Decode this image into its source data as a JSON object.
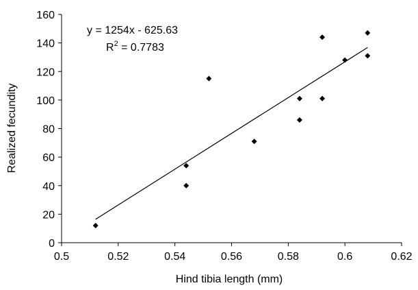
{
  "chart_data": {
    "type": "scatter",
    "xlabel": "Hind tibia length (mm)",
    "ylabel": "Realized fecundity",
    "xlim": [
      0.5,
      0.62
    ],
    "ylim": [
      0,
      160
    ],
    "x_ticks": [
      "0.5",
      "0.52",
      "0.54",
      "0.56",
      "0.58",
      "0.6",
      "0.62"
    ],
    "y_ticks": [
      "0",
      "20",
      "40",
      "60",
      "80",
      "100",
      "120",
      "140",
      "160"
    ],
    "grid": false,
    "legend": "none",
    "marker": "diamond",
    "colors": {
      "points": "#000000",
      "trendline": "#000000",
      "axes": "#000000"
    },
    "points": [
      {
        "x": 0.512,
        "y": 12
      },
      {
        "x": 0.544,
        "y": 54
      },
      {
        "x": 0.544,
        "y": 40
      },
      {
        "x": 0.552,
        "y": 115
      },
      {
        "x": 0.568,
        "y": 71
      },
      {
        "x": 0.584,
        "y": 101
      },
      {
        "x": 0.584,
        "y": 86
      },
      {
        "x": 0.592,
        "y": 144
      },
      {
        "x": 0.592,
        "y": 101
      },
      {
        "x": 0.6,
        "y": 128
      },
      {
        "x": 0.608,
        "y": 147
      },
      {
        "x": 0.608,
        "y": 131
      }
    ],
    "trendline": {
      "type": "linear",
      "slope": 1254,
      "intercept": -625.63,
      "x_from": 0.512,
      "x_to": 0.608
    },
    "annotations": {
      "equation": "y = 1254x - 625.63",
      "r2_prefix": "R",
      "r2_sup": "2",
      "r2_suffix": " = 0.7783"
    }
  }
}
